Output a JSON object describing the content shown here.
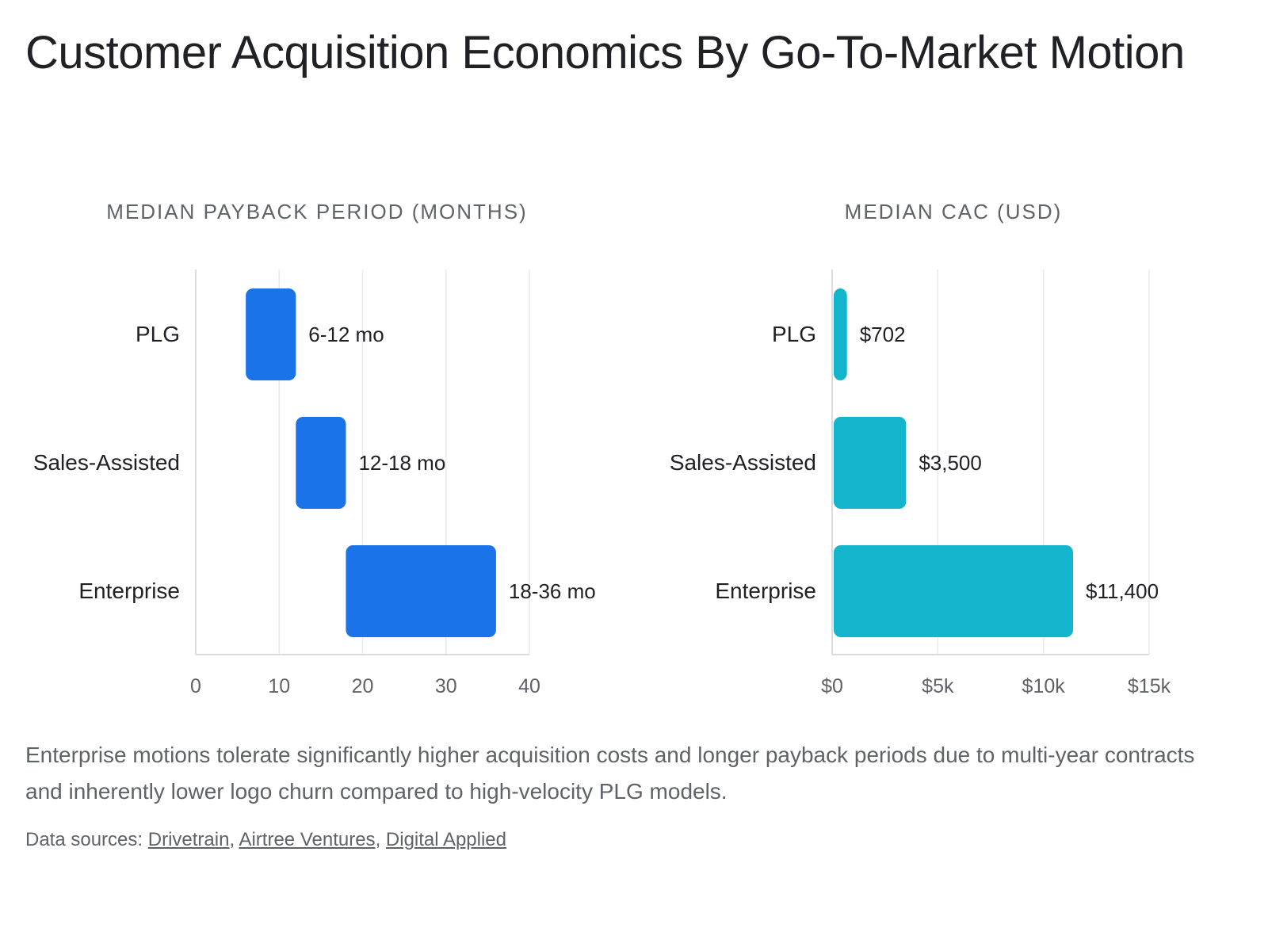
{
  "title": "Customer Acquisition Economics By Go-To-Market Motion",
  "note": "Enterprise motions tolerate significantly higher acquisition costs and longer payback periods due to multi-year contracts and inherently lower logo churn compared to high-velocity PLG models.",
  "sources": {
    "label": "Data sources:",
    "links": [
      "Drivetrain",
      "Airtree Ventures",
      "Digital Applied"
    ]
  },
  "colors": {
    "payback_bar": "#1a73e8",
    "cac_bar": "#12b5cb",
    "grid": "#e8eaed",
    "axis": "#dadce0",
    "text": "#202124",
    "muted": "#5f6368"
  },
  "chart_data": [
    {
      "type": "bar",
      "orientation": "horizontal",
      "title": "MEDIAN PAYBACK PERIOD (MONTHS)",
      "categories": [
        "PLG",
        "Sales-Assisted",
        "Enterprise"
      ],
      "ranges": [
        [
          6,
          12
        ],
        [
          12,
          18
        ],
        [
          18,
          36
        ]
      ],
      "data_labels": [
        "6-12 mo",
        "12-18 mo",
        "18-36 mo"
      ],
      "xlim": [
        0,
        40
      ],
      "ticks": [
        0,
        10,
        20,
        30,
        40
      ],
      "tick_labels": [
        "0",
        "10",
        "20",
        "30",
        "40"
      ],
      "grid": true
    },
    {
      "type": "bar",
      "orientation": "horizontal",
      "title": "MEDIAN CAC (USD)",
      "categories": [
        "PLG",
        "Sales-Assisted",
        "Enterprise"
      ],
      "values": [
        702,
        3500,
        11400
      ],
      "data_labels": [
        "$702",
        "$3,500",
        "$11,400"
      ],
      "xlim": [
        0,
        15000
      ],
      "ticks": [
        0,
        5000,
        10000,
        15000
      ],
      "tick_labels": [
        "$0",
        "$5k",
        "$10k",
        "$15k"
      ],
      "grid": true
    }
  ]
}
